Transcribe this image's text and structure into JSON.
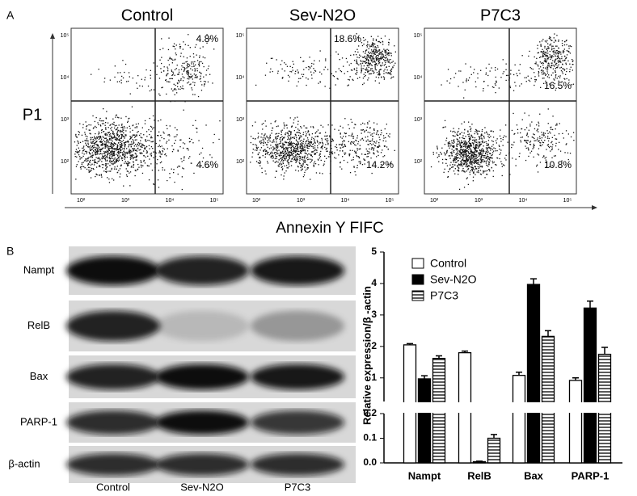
{
  "labels": {
    "panel_a": "A",
    "panel_b": "B",
    "y_axis": "P1",
    "x_axis": "Annexin Y FIFC"
  },
  "flow": {
    "ticks": [
      "10²",
      "10³",
      "10⁴",
      "10⁵"
    ],
    "plots": [
      {
        "title": "Control",
        "upper_right": "4.8%",
        "lower_right": "4.6%"
      },
      {
        "title": "Sev-N2O",
        "upper_right": "18.6%",
        "lower_right": "14.2%"
      },
      {
        "title": "P7C3",
        "upper_right": "16.5%",
        "lower_right": "10.8%"
      }
    ]
  },
  "blot": {
    "rows": [
      "Nampt",
      "RelB",
      "Bax",
      "PARP-1",
      "β-actin"
    ],
    "columns": [
      "Control",
      "Sev-N2O",
      "P7C3"
    ]
  },
  "chart_data": {
    "type": "bar",
    "y_label": "Relative expression/β -actin",
    "categories": [
      "Nampt",
      "RelB",
      "Bax",
      "PARP-1"
    ],
    "series": [
      {
        "name": "Control",
        "color": "#ffffff",
        "values": [
          2.05,
          1.8,
          1.08,
          0.92
        ],
        "errors": [
          0.04,
          0.05,
          0.1,
          0.08
        ]
      },
      {
        "name": "Sev-N2O",
        "color": "#000000",
        "values": [
          0.97,
          0.005,
          3.97,
          3.22
        ],
        "errors": [
          0.1,
          0.002,
          0.18,
          0.22
        ]
      },
      {
        "name": "P7C3",
        "color": "#ffffff",
        "hatch": true,
        "values": [
          1.62,
          0.1,
          2.32,
          1.75
        ],
        "errors": [
          0.08,
          0.015,
          0.18,
          0.22
        ]
      }
    ],
    "ylim": [
      0.25,
      5
    ],
    "yticks": [
      1,
      2,
      3,
      4,
      5
    ],
    "ylim_lower": [
      0,
      0.2
    ],
    "yticks_lower": [
      {
        "value": 0,
        "label": "0.0"
      },
      0.1,
      0.2
    ]
  }
}
